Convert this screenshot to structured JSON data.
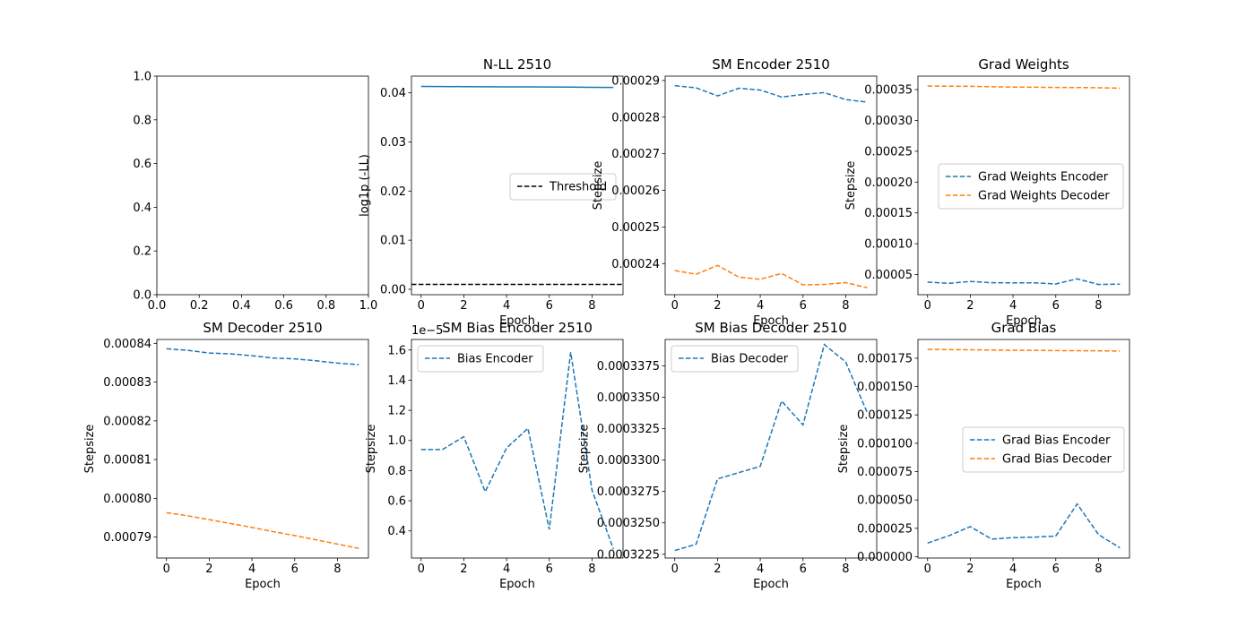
{
  "figure": {
    "width": 1400,
    "height": 700
  },
  "colors": {
    "blue": "#1f77b4",
    "orange": "#ff7f0e",
    "black": "#000000"
  },
  "chart_data": [
    {
      "type": "line",
      "title": "",
      "xlabel": "",
      "ylabel": "",
      "xlim": [
        0,
        1
      ],
      "ylim": [
        0,
        1
      ],
      "xticks": [
        0,
        0.2,
        0.4,
        0.6,
        0.8,
        1
      ],
      "yticks": [
        0,
        0.2,
        0.4,
        0.6,
        0.8,
        1
      ],
      "xtick_labels": [
        "0.0",
        "0.2",
        "0.4",
        "0.6",
        "0.8",
        "1.0"
      ],
      "ytick_labels": [
        "0.0",
        "0.2",
        "0.4",
        "0.6",
        "0.8",
        "1.0"
      ],
      "offset_text": "",
      "series": [],
      "legend": null
    },
    {
      "type": "line",
      "title": "N-LL 2510",
      "xlabel": "Epoch",
      "ylabel": "log1p (-LL)",
      "xlim": [
        -0.45,
        9.45
      ],
      "ylim": [
        -0.0011,
        0.0434
      ],
      "xticks": [
        0,
        2,
        4,
        6,
        8
      ],
      "yticks": [
        0,
        0.01,
        0.02,
        0.03,
        0.04
      ],
      "xtick_labels": [
        "0",
        "2",
        "4",
        "6",
        "8"
      ],
      "ytick_labels": [
        "0.00",
        "0.01",
        "0.02",
        "0.03",
        "0.04"
      ],
      "offset_text": "",
      "series": [
        {
          "color": "blue",
          "dash": "solid",
          "x": [
            0,
            1,
            2,
            3,
            4,
            5,
            6,
            7,
            8,
            9
          ],
          "y": [
            0.0413,
            0.04128,
            0.04126,
            0.04124,
            0.04122,
            0.0412,
            0.04118,
            0.04116,
            0.04113,
            0.0411
          ]
        },
        {
          "name": "Threshold",
          "color": "black",
          "dash": "dashed",
          "hline": 0.001
        }
      ],
      "legend": {
        "loc": "center-right",
        "entries": [
          "Threshold"
        ]
      }
    },
    {
      "type": "line",
      "title": "SM Encoder 2510",
      "xlabel": "Epoch",
      "ylabel": "Stepsize",
      "xlim": [
        -0.45,
        9.45
      ],
      "ylim": [
        0.0002315,
        0.0002912
      ],
      "xticks": [
        0,
        2,
        4,
        6,
        8
      ],
      "yticks": [
        0.00024,
        0.00025,
        0.00026,
        0.00027,
        0.00028,
        0.00029
      ],
      "xtick_labels": [
        "0",
        "2",
        "4",
        "6",
        "8"
      ],
      "ytick_labels": [
        "0.00024",
        "0.00025",
        "0.00026",
        "0.00027",
        "0.00028",
        "0.00029"
      ],
      "offset_text": "",
      "series": [
        {
          "color": "blue",
          "dash": "dashed",
          "x": [
            0,
            1,
            2,
            3,
            4,
            5,
            6,
            7,
            8,
            9
          ],
          "y": [
            0.0002886,
            0.000288,
            0.0002858,
            0.0002879,
            0.0002874,
            0.0002855,
            0.0002862,
            0.0002867,
            0.0002848,
            0.0002841
          ]
        },
        {
          "color": "orange",
          "dash": "dashed",
          "x": [
            0,
            1,
            2,
            3,
            4,
            5,
            6,
            7,
            8,
            9
          ],
          "y": [
            0.0002381,
            0.0002371,
            0.0002395,
            0.0002363,
            0.0002357,
            0.0002373,
            0.0002342,
            0.0002343,
            0.0002348,
            0.0002334
          ]
        }
      ],
      "legend": null
    },
    {
      "type": "line",
      "title": "Grad Weights",
      "xlabel": "Epoch",
      "ylabel": "Stepsize",
      "xlim": [
        -0.45,
        9.45
      ],
      "ylim": [
        1.74e-05,
        0.0003718
      ],
      "xticks": [
        0,
        2,
        4,
        6,
        8
      ],
      "yticks": [
        5e-05,
        0.0001,
        0.00015,
        0.0002,
        0.00025,
        0.0003,
        0.00035
      ],
      "xtick_labels": [
        "0",
        "2",
        "4",
        "6",
        "8"
      ],
      "ytick_labels": [
        "0.00005",
        "0.00010",
        "0.00015",
        "0.00020",
        "0.00025",
        "0.00030",
        "0.00035"
      ],
      "offset_text": "",
      "series": [
        {
          "name": "Grad Weights Encoder",
          "color": "blue",
          "dash": "dashed",
          "x": [
            0,
            1,
            2,
            3,
            4,
            5,
            6,
            7,
            8,
            9
          ],
          "y": [
            3.78e-05,
            3.58e-05,
            3.89e-05,
            3.68e-05,
            3.66e-05,
            3.66e-05,
            3.48e-05,
            4.31e-05,
            3.4e-05,
            3.45e-05
          ]
        },
        {
          "name": "Grad Weights Decoder",
          "color": "orange",
          "dash": "dashed",
          "x": [
            0,
            1,
            2,
            3,
            4,
            5,
            6,
            7,
            8,
            9
          ],
          "y": [
            0.0003558,
            0.0003554,
            0.0003553,
            0.0003546,
            0.0003541,
            0.0003538,
            0.0003535,
            0.0003533,
            0.000353,
            0.0003522
          ]
        }
      ],
      "legend": {
        "loc": "center-right",
        "entries": [
          "Grad Weights Encoder",
          "Grad Weights Decoder"
        ]
      }
    },
    {
      "type": "line",
      "title": "SM Decoder 2510",
      "xlabel": "Epoch",
      "ylabel": "Stepsize",
      "xlim": [
        -0.45,
        9.45
      ],
      "ylim": [
        0.0007846,
        0.000841
      ],
      "xticks": [
        0,
        2,
        4,
        6,
        8
      ],
      "yticks": [
        0.00079,
        0.0008,
        0.00081,
        0.00082,
        0.00083,
        0.00084
      ],
      "xtick_labels": [
        "0",
        "2",
        "4",
        "6",
        "8"
      ],
      "ytick_labels": [
        "0.00079",
        "0.00080",
        "0.00081",
        "0.00082",
        "0.00083",
        "0.00084"
      ],
      "offset_text": "",
      "series": [
        {
          "color": "blue",
          "dash": "dashed",
          "x": [
            0,
            1,
            2,
            3,
            4,
            5,
            6,
            7,
            8,
            9
          ],
          "y": [
            0.0008386,
            0.0008382,
            0.0008375,
            0.0008373,
            0.0008368,
            0.0008362,
            0.000836,
            0.0008355,
            0.0008349,
            0.0008345
          ]
        },
        {
          "color": "orange",
          "dash": "dashed",
          "x": [
            0,
            1,
            2,
            3,
            4,
            5,
            6,
            7,
            8,
            9
          ],
          "y": [
            0.0007963,
            0.0007955,
            0.0007945,
            0.0007935,
            0.0007925,
            0.0007914,
            0.0007904,
            0.0007893,
            0.0007882,
            0.0007871
          ]
        }
      ],
      "legend": null
    },
    {
      "type": "line",
      "title": "SM Bias Encoder 2510",
      "xlabel": "Epoch",
      "ylabel": "Stepsize",
      "xlim": [
        -0.45,
        9.45
      ],
      "ylim": [
        0.22,
        1.67
      ],
      "xticks": [
        0,
        2,
        4,
        6,
        8
      ],
      "yticks": [
        0.4,
        0.6,
        0.8,
        1.0,
        1.2,
        1.4,
        1.6
      ],
      "xtick_labels": [
        "0",
        "2",
        "4",
        "6",
        "8"
      ],
      "ytick_labels": [
        "0.4",
        "0.6",
        "0.8",
        "1.0",
        "1.2",
        "1.4",
        "1.6"
      ],
      "offset_text": "1e−5",
      "series": [
        {
          "name": "Bias Encoder",
          "color": "blue",
          "dash": "dashed",
          "x": [
            0,
            1,
            2,
            3,
            4,
            5,
            6,
            7,
            8,
            9
          ],
          "y": [
            0.94,
            0.94,
            1.025,
            0.66,
            0.95,
            1.08,
            0.41,
            1.585,
            0.67,
            0.28
          ]
        }
      ],
      "legend": {
        "loc": "upper-left",
        "entries": [
          "Bias Encoder"
        ]
      }
    },
    {
      "type": "line",
      "title": "SM Bias Decoder 2510",
      "xlabel": "Epoch",
      "ylabel": "Stepsize",
      "xlim": [
        -0.45,
        9.45
      ],
      "ylim": [
        0.0003222,
        0.0003396
      ],
      "xticks": [
        0,
        2,
        4,
        6,
        8
      ],
      "yticks": [
        0.0003225,
        0.000325,
        0.0003275,
        0.00033,
        0.0003325,
        0.000335,
        0.0003375
      ],
      "xtick_labels": [
        "0",
        "2",
        "4",
        "6",
        "8"
      ],
      "ytick_labels": [
        "0.0003225",
        "0.0003250",
        "0.0003275",
        "0.0003300",
        "0.0003325",
        "0.0003350",
        "0.0003375"
      ],
      "offset_text": "",
      "series": [
        {
          "name": "Bias Decoder",
          "color": "blue",
          "dash": "dashed",
          "x": [
            0,
            1,
            2,
            3,
            4,
            5,
            6,
            7,
            8,
            9
          ],
          "y": [
            0.0003228,
            0.0003233,
            0.0003285,
            0.000329,
            0.0003295,
            0.0003347,
            0.0003328,
            0.0003392,
            0.0003378,
            0.0003338
          ]
        }
      ],
      "legend": {
        "loc": "upper-left",
        "entries": [
          "Bias Decoder"
        ]
      }
    },
    {
      "type": "line",
      "title": "Grad Bias",
      "xlabel": "Epoch",
      "ylabel": "Stepsize",
      "xlim": [
        -0.45,
        9.45
      ],
      "ylim": [
        -1.2e-06,
        0.0001915
      ],
      "xticks": [
        0,
        2,
        4,
        6,
        8
      ],
      "yticks": [
        0,
        2.5e-05,
        5e-05,
        7.5e-05,
        0.0001,
        0.000125,
        0.00015,
        0.000175
      ],
      "xtick_labels": [
        "0",
        "2",
        "4",
        "6",
        "8"
      ],
      "ytick_labels": [
        "0.000000",
        "0.000025",
        "0.000050",
        "0.000075",
        "0.000100",
        "0.000125",
        "0.000150",
        "0.000175"
      ],
      "offset_text": "",
      "series": [
        {
          "name": "Grad Bias Encoder",
          "color": "blue",
          "dash": "dashed",
          "x": [
            0,
            1,
            2,
            3,
            4,
            5,
            6,
            7,
            8,
            9
          ],
          "y": [
            1.2e-05,
            1.85e-05,
            2.65e-05,
            1.55e-05,
            1.68e-05,
            1.72e-05,
            1.82e-05,
            4.65e-05,
            1.95e-05,
            7.8e-06
          ]
        },
        {
          "name": "Grad Bias Decoder",
          "color": "orange",
          "dash": "dashed",
          "x": [
            0,
            1,
            2,
            3,
            4,
            5,
            6,
            7,
            8,
            9
          ],
          "y": [
            0.0001828,
            0.0001826,
            0.0001824,
            0.0001822,
            0.000182,
            0.0001819,
            0.0001817,
            0.0001816,
            0.0001815,
            0.0001813
          ]
        }
      ],
      "legend": {
        "loc": "center-right",
        "entries": [
          "Grad Bias Encoder",
          "Grad Bias Decoder"
        ]
      }
    }
  ]
}
